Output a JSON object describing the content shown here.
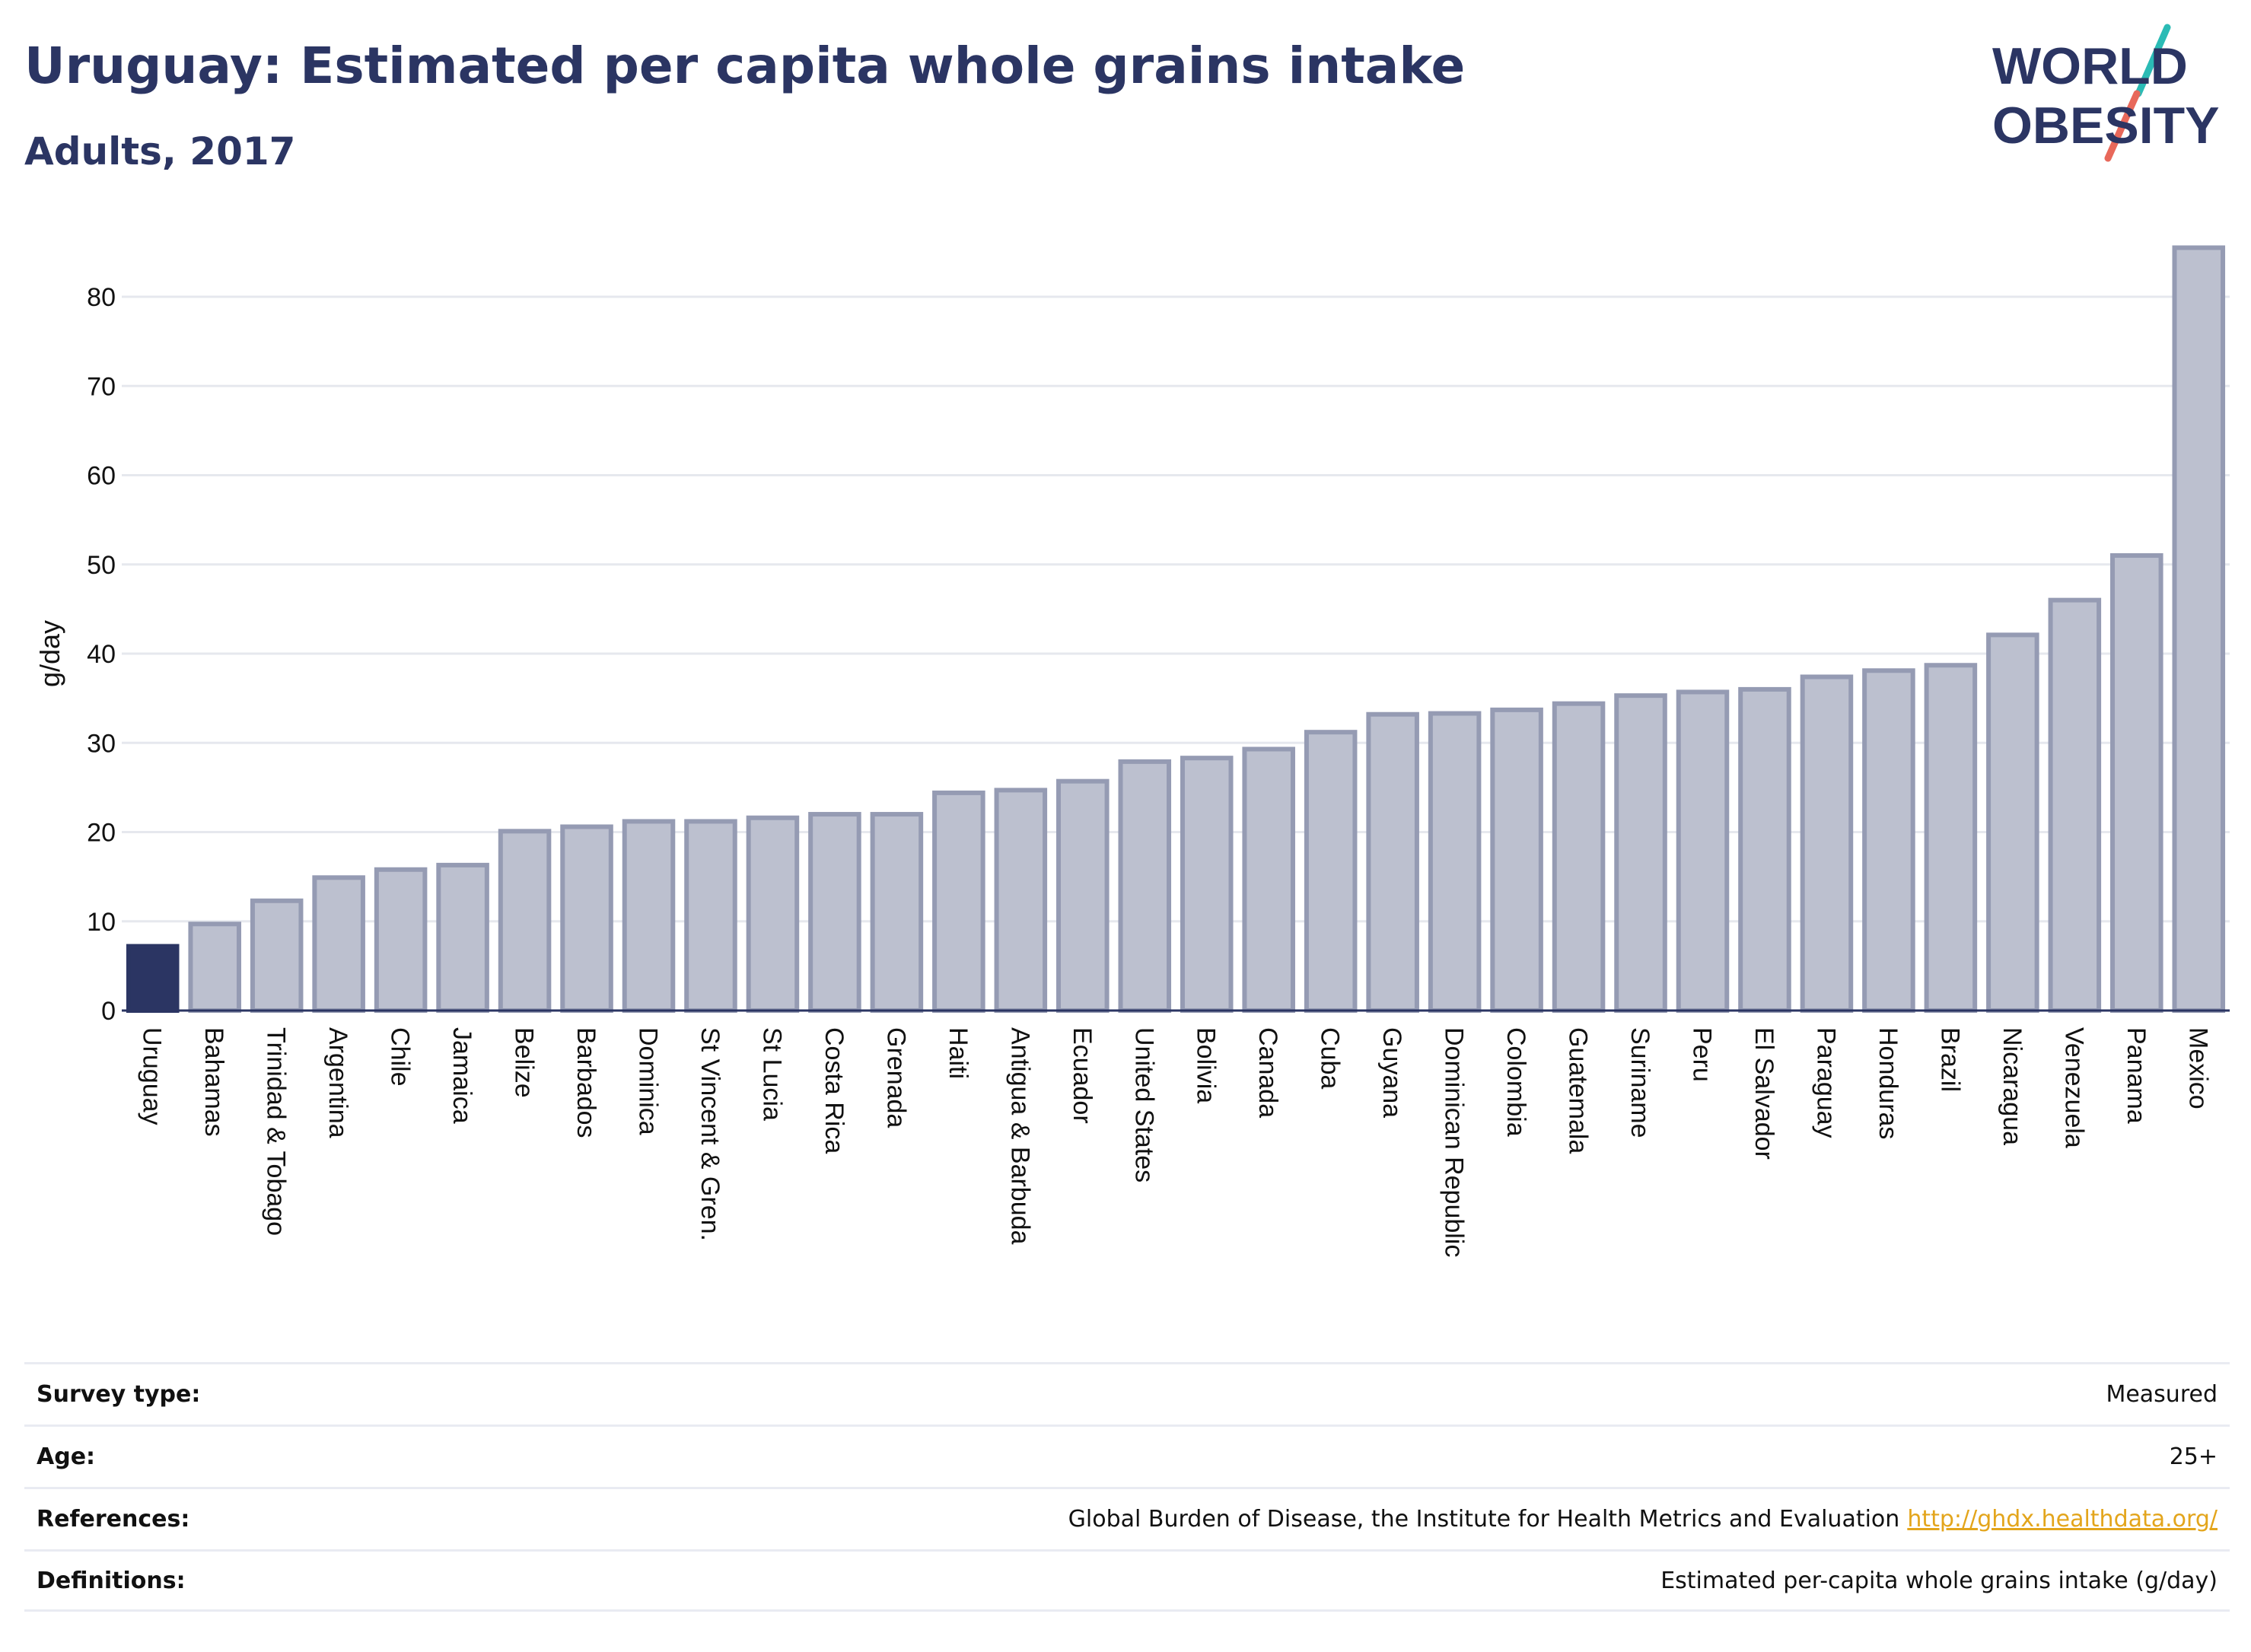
{
  "header": {
    "title": "Uruguay: Estimated per capita whole grains intake",
    "subtitle": "Adults, 2017"
  },
  "logo": {
    "line1": "WORLD",
    "line2": "OBESITY",
    "accent_teal": "#2bbbb5",
    "accent_coral": "#e8685a"
  },
  "colors": {
    "highlight": "#2b3563",
    "bar_fill": "#bcc0cf",
    "bar_stroke": "#959bb3",
    "grid": "#e6e8ee",
    "text": "#2b3563"
  },
  "chart_data": {
    "type": "bar",
    "title": "Uruguay: Estimated per capita whole grains intake",
    "subtitle": "Adults, 2017",
    "ylabel": "g/day",
    "xlabel": "",
    "ylim": [
      0,
      87
    ],
    "yticks": [
      0,
      10,
      20,
      30,
      40,
      50,
      60,
      70,
      80
    ],
    "grid": true,
    "highlight": "Uruguay",
    "categories": [
      "Uruguay",
      "Bahamas",
      "Trinidad & Tobago",
      "Argentina",
      "Chile",
      "Jamaica",
      "Belize",
      "Barbados",
      "Dominica",
      "St Vincent & Gren.",
      "St Lucia",
      "Costa Rica",
      "Grenada",
      "Haiti",
      "Antigua & Barbuda",
      "Ecuador",
      "United States",
      "Bolivia",
      "Canada",
      "Cuba",
      "Guyana",
      "Dominican Republic",
      "Colombia",
      "Guatemala",
      "Suriname",
      "Peru",
      "El Salvador",
      "Paraguay",
      "Honduras",
      "Brazil",
      "Nicaragua",
      "Venezuela",
      "Panama",
      "Mexico"
    ],
    "values": [
      7.2,
      9.7,
      12.3,
      14.9,
      15.8,
      16.3,
      20.1,
      20.6,
      21.2,
      21.2,
      21.6,
      22.0,
      22.0,
      24.4,
      24.7,
      25.7,
      27.9,
      28.3,
      29.3,
      31.2,
      33.2,
      33.3,
      33.7,
      34.4,
      35.3,
      35.7,
      36.0,
      37.4,
      38.1,
      38.7,
      42.1,
      46.0,
      51.0,
      85.5
    ]
  },
  "info": {
    "rows": [
      {
        "label": "Survey type:",
        "value": "Measured"
      },
      {
        "label": "Age:",
        "value": "25+"
      },
      {
        "label": "References:",
        "value": "Global Burden of Disease, the Institute for Health Metrics and Evaluation",
        "link": "http://ghdx.healthdata.org/"
      },
      {
        "label": "Definitions:",
        "value": "Estimated per-capita whole grains intake (g/day)"
      }
    ]
  }
}
